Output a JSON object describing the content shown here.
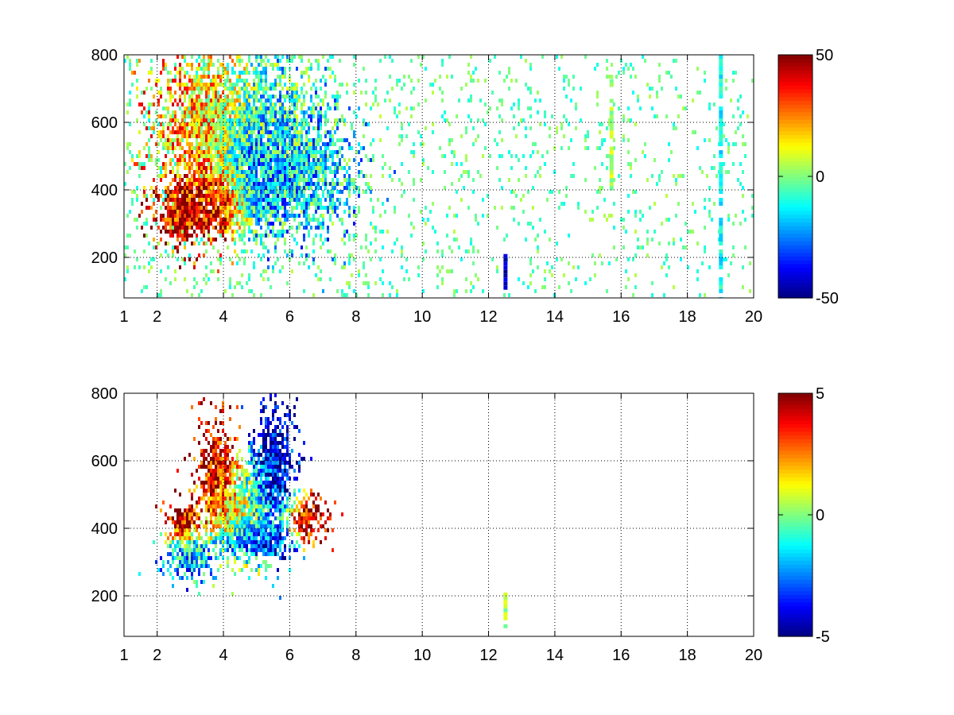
{
  "chart_data": [
    {
      "type": "heatmap",
      "x_ticks": [
        "1",
        "2",
        "4",
        "6",
        "8",
        "10",
        "12",
        "14",
        "16",
        "18",
        "20"
      ],
      "x_tick_values": [
        1,
        2,
        4,
        6,
        8,
        10,
        12,
        14,
        16,
        18,
        20
      ],
      "y_ticks": [
        "200",
        "400",
        "600",
        "800"
      ],
      "y_tick_values": [
        200,
        400,
        600,
        800
      ],
      "xlim": [
        1,
        20
      ],
      "ylim": [
        80,
        800
      ],
      "grid": true,
      "colormap": "jet",
      "colorbar": {
        "ticks": [
          "50",
          "0",
          "-50"
        ],
        "tick_values": [
          50,
          0,
          -50
        ],
        "min": -50,
        "max": 50
      },
      "blobs": [
        {
          "x": 2.8,
          "y": 330,
          "sx": 0.5,
          "sy": 55,
          "value": 42,
          "weight": 1.0
        },
        {
          "x": 4.0,
          "y": 370,
          "sx": 0.6,
          "sy": 60,
          "value": 48,
          "weight": 1.0
        },
        {
          "x": 4.9,
          "y": 430,
          "sx": 0.5,
          "sy": 80,
          "value": -40,
          "weight": 1.0
        },
        {
          "x": 3.3,
          "y": 600,
          "sx": 0.9,
          "sy": 140,
          "value": 20,
          "weight": 0.8
        },
        {
          "x": 5.2,
          "y": 560,
          "sx": 0.9,
          "sy": 140,
          "value": -10,
          "weight": 0.8
        },
        {
          "x": 6.5,
          "y": 450,
          "sx": 0.9,
          "sy": 120,
          "value": -15,
          "weight": 0.7
        }
      ],
      "stripes": [
        {
          "x": 12.5,
          "y0": 80,
          "y1": 210,
          "value": -45
        },
        {
          "x": 15.7,
          "y0": 400,
          "y1": 740,
          "value": 5
        },
        {
          "x": 19.0,
          "y0": 80,
          "y1": 800,
          "value": -12
        }
      ],
      "scatter_density": 0.12,
      "scatter_values": [
        -12,
        6
      ]
    },
    {
      "type": "heatmap",
      "x_ticks": [
        "1",
        "2",
        "4",
        "6",
        "8",
        "10",
        "12",
        "14",
        "16",
        "18",
        "20"
      ],
      "x_tick_values": [
        1,
        2,
        4,
        6,
        8,
        10,
        12,
        14,
        16,
        18,
        20
      ],
      "y_ticks": [
        "200",
        "400",
        "600",
        "800"
      ],
      "y_tick_values": [
        200,
        400,
        600,
        800
      ],
      "xlim": [
        1,
        20
      ],
      "ylim": [
        80,
        800
      ],
      "grid": true,
      "colormap": "jet",
      "colorbar": {
        "ticks": [
          "5",
          "0",
          "-5"
        ],
        "tick_values": [
          5,
          0,
          -5
        ],
        "min": -5,
        "max": 5
      },
      "blobs": [
        {
          "x": 3.0,
          "y": 320,
          "sx": 0.45,
          "sy": 45,
          "value": -2,
          "weight": 1.0
        },
        {
          "x": 3.8,
          "y": 560,
          "sx": 0.35,
          "sy": 90,
          "value": 4.5,
          "weight": 0.9
        },
        {
          "x": 2.8,
          "y": 420,
          "sx": 0.3,
          "sy": 40,
          "value": 4.5,
          "weight": 0.9
        },
        {
          "x": 5.5,
          "y": 580,
          "sx": 0.4,
          "sy": 120,
          "value": -4.5,
          "weight": 0.9
        },
        {
          "x": 4.6,
          "y": 450,
          "sx": 0.6,
          "sy": 90,
          "value": 0.5,
          "weight": 1.0
        },
        {
          "x": 6.6,
          "y": 430,
          "sx": 0.4,
          "sy": 40,
          "value": 4.5,
          "weight": 0.9
        },
        {
          "x": 5.0,
          "y": 360,
          "sx": 0.6,
          "sy": 30,
          "value": -4.5,
          "weight": 0.8
        }
      ],
      "stripes": [
        {
          "x": 12.5,
          "y0": 80,
          "y1": 210,
          "value": 0.5
        }
      ],
      "scatter_density": 0.0,
      "scatter_values": [
        0,
        0
      ]
    }
  ]
}
